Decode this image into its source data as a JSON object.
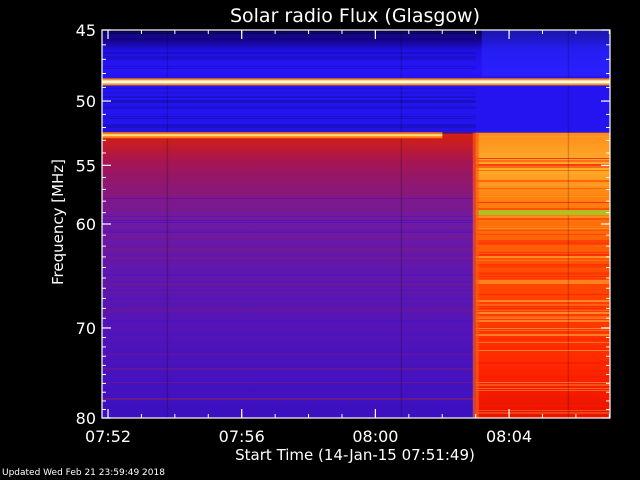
{
  "chart_data": {
    "type": "heatmap",
    "title": "Solar radio Flux (Glasgow)",
    "xlabel": "Start Time (14-Jan-15 07:51:49)",
    "ylabel": "Frequency [MHz]",
    "x_tick_labels": [
      "07:52",
      "07:56",
      "08:00",
      "08:04"
    ],
    "x_tick_minutes": [
      0.18,
      4.18,
      8.18,
      12.18
    ],
    "x_range_minutes": [
      0,
      15.2
    ],
    "y_ticks": [
      45,
      50,
      55,
      60,
      70,
      80
    ],
    "ylim": [
      45,
      80
    ],
    "y_scale": "log",
    "y_direction": "top-to-bottom increasing",
    "event_onset": "08:03",
    "colormap": [
      "#000000",
      "#1a0070",
      "#3010c8",
      "#6a1ab0",
      "#a01040",
      "#d01010",
      "#ff2000",
      "#ff7000",
      "#ffb030",
      "#ffffff"
    ],
    "features": [
      {
        "label": "narrowband line",
        "frequency_mhz": 48.6,
        "x_range": [
          "07:51",
          "08:07"
        ],
        "level": "max"
      },
      {
        "label": "narrowband line",
        "frequency_mhz": 52.6,
        "x_range": [
          "07:51",
          "08:02"
        ],
        "level": "high"
      },
      {
        "label": "burst band",
        "frequency_mhz": 59,
        "x_range": [
          "08:03",
          "08:07"
        ],
        "level": "high"
      }
    ]
  },
  "footer": {
    "updated_text": "Updated Wed Feb 21 23:59:49 2018"
  },
  "colors": {
    "background": "#000000",
    "text": "#ffffff"
  }
}
